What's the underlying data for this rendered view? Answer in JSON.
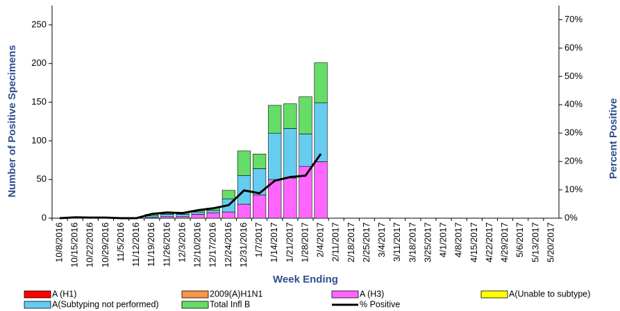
{
  "chart_data": {
    "type": "bar",
    "stacked": true,
    "y_label": "Number of  Positive Specimens",
    "y2_label": "Percent Positive",
    "x_label": "Week Ending",
    "categories": [
      "10/8/2016",
      "10/15/2016",
      "10/22/2016",
      "10/29/2016",
      "11/5/2016",
      "11/12/2016",
      "11/19/2016",
      "11/26/2016",
      "12/3/2016",
      "12/10/2016",
      "12/17/2016",
      "12/24/2016",
      "12/31/2016",
      "1/7/2017",
      "1/14/2017",
      "1/21/2017",
      "1/28/2017",
      "2/4/2017",
      "2/11/2017",
      "2/18/2017",
      "2/25/2017",
      "3/4/2017",
      "3/11/2017",
      "3/18/2017",
      "3/25/2017",
      "4/1/2017",
      "4/8/2017",
      "4/15/2017",
      "4/22/2017",
      "4/29/2017",
      "5/6/2017",
      "5/13/2017",
      "5/20/2017"
    ],
    "series": [
      {
        "name": "A (H1)",
        "color": "#ff0000",
        "values": [
          0,
          0,
          0,
          0,
          0,
          0,
          0,
          0,
          0,
          0,
          0,
          0,
          0,
          0,
          0,
          0,
          0,
          0,
          null,
          null,
          null,
          null,
          null,
          null,
          null,
          null,
          null,
          null,
          null,
          null,
          null,
          null,
          null
        ]
      },
      {
        "name": "2009(A)H1N1",
        "color": "#f79646",
        "values": [
          0,
          0,
          0,
          0,
          0,
          0,
          0,
          0,
          0,
          0,
          0,
          0,
          0,
          0,
          0,
          0,
          0,
          0,
          null,
          null,
          null,
          null,
          null,
          null,
          null,
          null,
          null,
          null,
          null,
          null,
          null,
          null,
          null
        ]
      },
      {
        "name": "A (H3)",
        "color": "#ff66ff",
        "values": [
          0,
          0,
          0,
          0,
          0,
          0,
          1,
          2,
          2,
          5,
          7,
          8,
          18,
          30,
          50,
          52,
          67,
          73,
          null,
          null,
          null,
          null,
          null,
          null,
          null,
          null,
          null,
          null,
          null,
          null,
          null,
          null,
          null
        ]
      },
      {
        "name": "A(Unable to subtype)",
        "color": "#ffff00",
        "values": [
          0,
          0,
          0,
          0,
          0,
          0,
          0,
          0,
          0,
          0,
          0,
          0,
          0,
          0,
          0,
          0,
          0,
          0,
          null,
          null,
          null,
          null,
          null,
          null,
          null,
          null,
          null,
          null,
          null,
          null,
          null,
          null,
          null
        ]
      },
      {
        "name": "A(Subtyping not performed)",
        "color": "#66ccf0",
        "values": [
          0,
          1,
          0,
          0,
          0,
          0,
          2,
          3,
          3,
          3,
          3,
          17,
          37,
          34,
          60,
          64,
          42,
          76,
          null,
          null,
          null,
          null,
          null,
          null,
          null,
          null,
          null,
          null,
          null,
          null,
          null,
          null,
          null
        ]
      },
      {
        "name": "Total Infl B",
        "color": "#66dd66",
        "values": [
          0,
          0,
          0,
          0,
          0,
          0,
          2,
          2,
          2,
          2,
          3,
          11,
          32,
          19,
          36,
          32,
          48,
          52,
          null,
          null,
          null,
          null,
          null,
          null,
          null,
          null,
          null,
          null,
          null,
          null,
          null,
          null,
          null
        ]
      },
      {
        "name": "% Positive",
        "color": "#000000",
        "type": "line",
        "axis": "y2",
        "values": [
          0,
          0.3,
          0.2,
          0.2,
          0,
          0,
          1.5,
          2,
          1.8,
          2.8,
          3.5,
          4.6,
          9.8,
          8.8,
          13.2,
          14.5,
          15,
          22.7,
          null,
          null,
          null,
          null,
          null,
          null,
          null,
          null,
          null,
          null,
          null,
          null,
          null,
          null,
          null
        ]
      }
    ],
    "ylim": [
      0,
      275
    ],
    "yticks": [
      0,
      50,
      100,
      150,
      200,
      250
    ],
    "y2lim": [
      0,
      75
    ],
    "y2ticks": [
      {
        "value": 0,
        "label": "0%"
      },
      {
        "value": 10,
        "label": "10%"
      },
      {
        "value": 20,
        "label": "20%"
      },
      {
        "value": 30,
        "label": "30%"
      },
      {
        "value": 40,
        "label": "40%"
      },
      {
        "value": 50,
        "label": "50%"
      },
      {
        "value": 60,
        "label": "60%"
      },
      {
        "value": 70,
        "label": "70%"
      }
    ],
    "grid": false
  }
}
